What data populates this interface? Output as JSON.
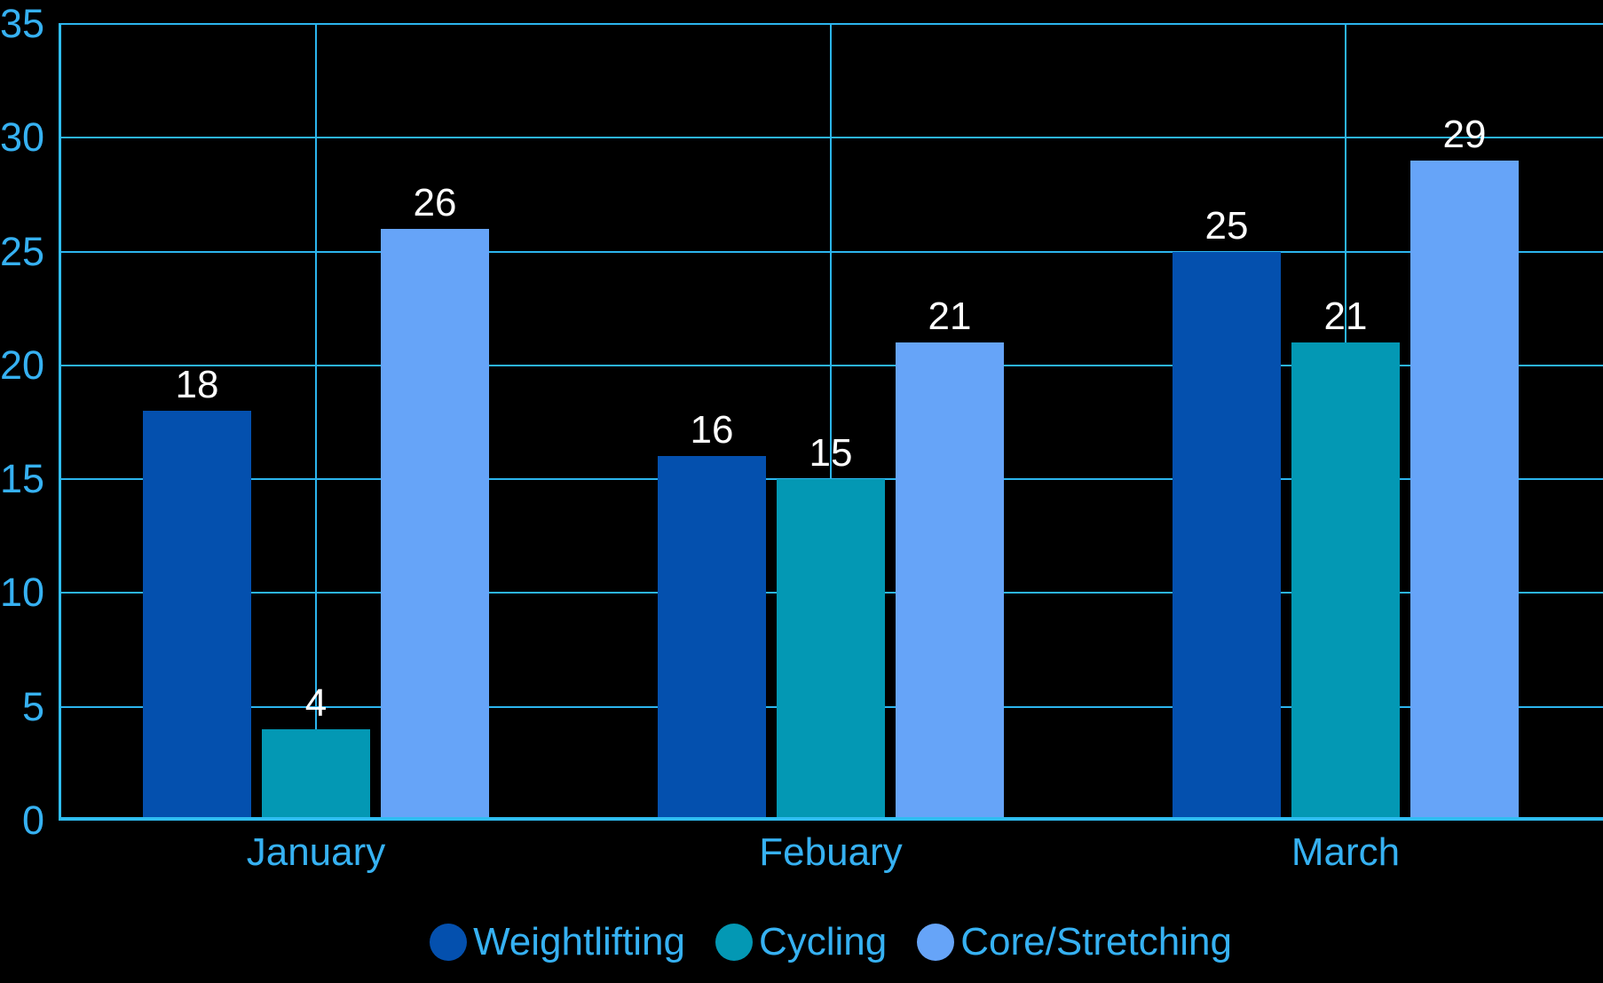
{
  "chart_data": {
    "type": "bar",
    "title": "",
    "categories": [
      "January",
      "Febuary",
      "March"
    ],
    "series": [
      {
        "name": "Weightlifting",
        "color": "#0450ae",
        "values": [
          18,
          16,
          25
        ]
      },
      {
        "name": "Cycling",
        "color": "#0398b4",
        "values": [
          4,
          15,
          21
        ]
      },
      {
        "name": "Core/Stretching",
        "color": "#66a4f8",
        "values": [
          26,
          21,
          29
        ]
      }
    ],
    "ylim": [
      0,
      35
    ],
    "yticks": [
      0,
      5,
      10,
      15,
      20,
      25,
      30,
      35
    ],
    "grid": true,
    "vertical_gridlines_at_group_centers": true,
    "data_labels": true,
    "legend_position": "bottom"
  },
  "style": {
    "background_color": "#000000",
    "grid_color": "#2cb5ee",
    "axis_color": "#2fbdf2",
    "tick_label_color": "#36b1f2",
    "data_label_color": "#ffffff"
  }
}
